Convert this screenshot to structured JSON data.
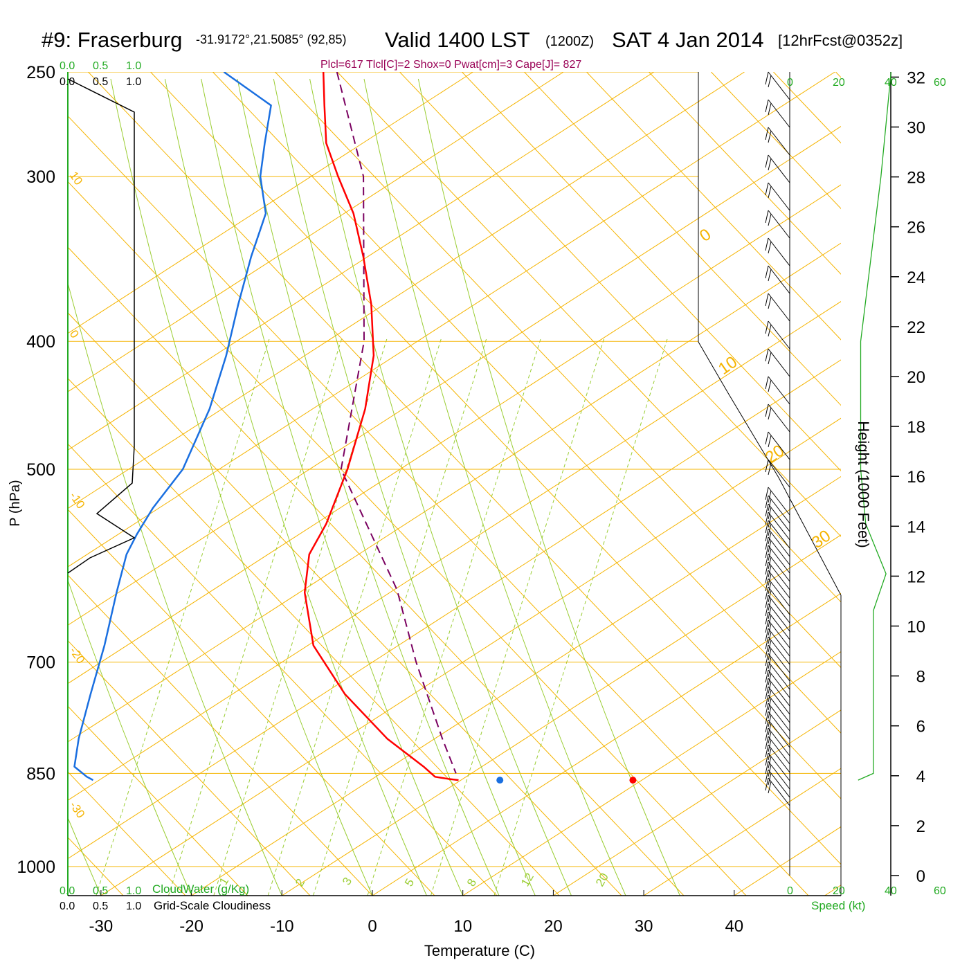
{
  "header": {
    "station": "#9: Fraserburg",
    "coords": "-31.9172°,21.5085° (92,85)",
    "valid": "Valid 1400 LST",
    "utc": "(1200Z)",
    "date": "SAT 4 Jan 2014",
    "fcst": "[12hrFcst@0352z]",
    "params": "Plcl=617 Tlcl[C]=2 Shox=0 Pwat[cm]=3 Cape[J]= 827"
  },
  "colors": {
    "temperature": "#ff0000",
    "dewpoint": "#1a6fe0",
    "parcel": "#7a0060",
    "isotherm": "#f5b400",
    "dry_adiabat": "#f5b400",
    "moist_adiabat": "#9acd32",
    "mixing_ratio": "#9acd32",
    "cloud_scale": "#22aa22",
    "cloudiness": "#000000",
    "wind": "#000000",
    "speed_profile": "#22aa22",
    "params_text": "#990055"
  },
  "scales": {
    "cloudwater_top": [
      "0.0",
      "0.5",
      "1.0"
    ],
    "cloudiness_top": [
      "0.0",
      "0.5",
      "1.0"
    ],
    "cloudwater_bottom": [
      "0.0",
      "0.5",
      "1.0"
    ],
    "cloudwater_label": "CloudWater (g/Kg)",
    "cloudiness_bottom": [
      "0.0",
      "0.5",
      "1.0"
    ],
    "cloudiness_label": "Grid-Scale Cloudiness",
    "speed_top_inner": [
      "0",
      "20",
      "40"
    ],
    "speed_top_outer": "60",
    "speed_bottom": [
      "0",
      "20",
      "40",
      "60"
    ],
    "speed_label": "Speed (kt)"
  },
  "chart_data": {
    "type": "skew-t",
    "xlabel": "Temperature (C)",
    "ylabel": "P (hPa)",
    "y2label": "Height (1000 Feet)",
    "x_ticks": [
      -30,
      -20,
      -10,
      0,
      10,
      20,
      30,
      40
    ],
    "p_ticks": [
      250,
      300,
      400,
      500,
      700,
      850,
      1000
    ],
    "height_ticks": [
      0,
      2,
      4,
      6,
      8,
      10,
      12,
      14,
      16,
      18,
      20,
      22,
      24,
      26,
      28,
      30,
      32
    ],
    "isotherm_labels_left": [
      "10",
      "0",
      "-10",
      "-20",
      "-30"
    ],
    "isotherm_labels_right": [
      "0",
      "10",
      "20",
      "30"
    ],
    "mixing_ratio_labels": [
      "1",
      "2",
      "3",
      "5",
      "8",
      "12",
      "20"
    ],
    "temperature": {
      "pressure": [
        250,
        265,
        283,
        300,
        320,
        345,
        375,
        410,
        450,
        500,
        550,
        580,
        620,
        680,
        740,
        800,
        840,
        855,
        858,
        860
      ],
      "temp_c": [
        -7.5,
        -7.3,
        -7.0,
        -5.6,
        -3.8,
        -2.6,
        -1.6,
        -1.2,
        -2.0,
        -3.8,
        -6.0,
        -7.8,
        -8.2,
        -7.1,
        -3.5,
        1.3,
        5.4,
        6.7,
        8.1,
        9.3
      ]
    },
    "dewpoint": {
      "pressure": [
        250,
        265,
        283,
        300,
        320,
        345,
        375,
        410,
        450,
        500,
        535,
        560,
        580,
        620,
        680,
        740,
        800,
        840,
        855,
        860
      ],
      "dewpoint_c": [
        -18.5,
        -13.2,
        -13.8,
        -14.2,
        -13.5,
        -15.0,
        -16.3,
        -17.5,
        -19.2,
        -22.0,
        -25.2,
        -26.9,
        -28.0,
        -29.0,
        -30.2,
        -31.6,
        -32.8,
        -33.2,
        -31.8,
        -31.1
      ]
    },
    "parcel": {
      "pressure": [
        250,
        300,
        400,
        500,
        617,
        700,
        800,
        850
      ],
      "temp_c": [
        -6.0,
        -2.8,
        -2.3,
        -4.5,
        2.0,
        4.3,
        7.4,
        9.0
      ]
    },
    "surface_temp_c": 28.8,
    "surface_dewpoint_c": 11.8,
    "surface_pressure": 860,
    "wind_speed_profile": {
      "pressure": [
        250,
        300,
        400,
        500,
        550,
        600,
        640,
        700,
        800,
        850,
        860
      ],
      "speed_kt": [
        40,
        36,
        28,
        28,
        30,
        38,
        33,
        33,
        33,
        33,
        27
      ]
    }
  }
}
